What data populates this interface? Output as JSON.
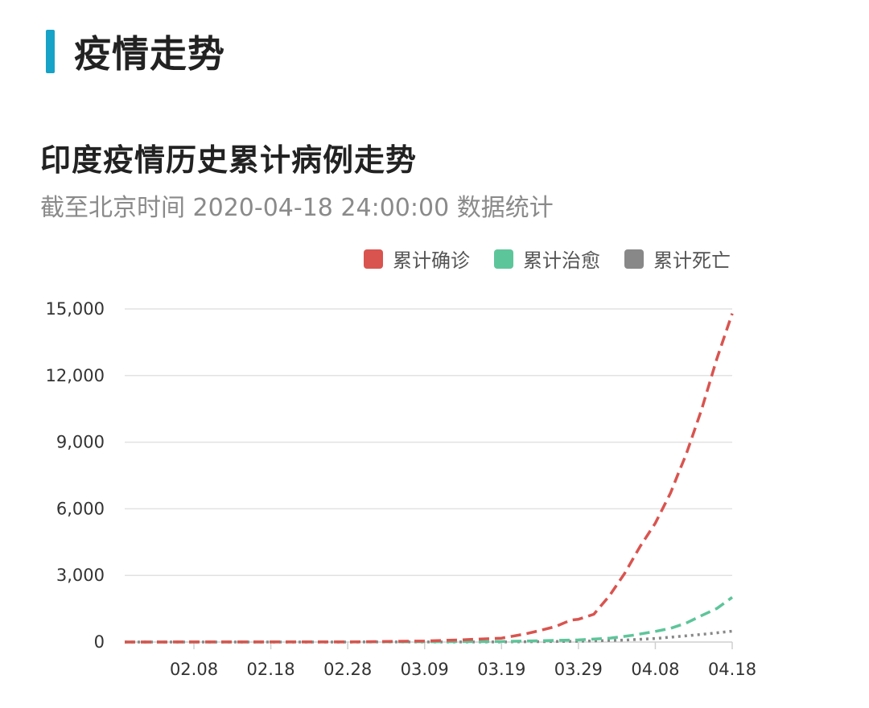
{
  "section": {
    "title": "疫情走势"
  },
  "chart_data": {
    "type": "line",
    "title": "印度疫情历史累计病例走势",
    "subtitle": "截至北京时间 2020-04-18 24:00:00 数据统计",
    "xlabel": "",
    "ylabel": "",
    "ylim": [
      0,
      15000
    ],
    "yticks": [
      0,
      3000,
      6000,
      9000,
      12000,
      15000
    ],
    "ytick_labels": [
      "0",
      "3,000",
      "6,000",
      "9,000",
      "12,000",
      "15,000"
    ],
    "xlim": [
      "2020-01-30",
      "2020-04-18"
    ],
    "xtick_labels": [
      "02.08",
      "02.18",
      "02.28",
      "03.09",
      "03.19",
      "03.29",
      "04.08",
      "04.18"
    ],
    "xtick_dates": [
      "2020-02-08",
      "2020-02-18",
      "2020-02-28",
      "2020-03-09",
      "2020-03-19",
      "2020-03-29",
      "2020-04-08",
      "2020-04-18"
    ],
    "grid": true,
    "legend_position": "top-right",
    "series": [
      {
        "name": "累计确诊",
        "color": "#d9544f",
        "dash": "dashed",
        "points": [
          [
            "2020-01-30",
            1
          ],
          [
            "2020-02-08",
            3
          ],
          [
            "2020-02-18",
            3
          ],
          [
            "2020-02-28",
            3
          ],
          [
            "2020-03-05",
            30
          ],
          [
            "2020-03-09",
            43
          ],
          [
            "2020-03-14",
            100
          ],
          [
            "2020-03-19",
            173
          ],
          [
            "2020-03-22",
            360
          ],
          [
            "2020-03-24",
            519
          ],
          [
            "2020-03-26",
            694
          ],
          [
            "2020-03-28",
            987
          ],
          [
            "2020-03-29",
            1024
          ],
          [
            "2020-03-31",
            1251
          ],
          [
            "2020-04-02",
            2069
          ],
          [
            "2020-04-04",
            3082
          ],
          [
            "2020-04-06",
            4289
          ],
          [
            "2020-04-08",
            5351
          ],
          [
            "2020-04-10",
            6725
          ],
          [
            "2020-04-11",
            7600
          ],
          [
            "2020-04-12",
            8446
          ],
          [
            "2020-04-14",
            10453
          ],
          [
            "2020-04-16",
            12759
          ],
          [
            "2020-04-18",
            14792
          ]
        ]
      },
      {
        "name": "累计治愈",
        "color": "#5dc59a",
        "dash": "dashed",
        "points": [
          [
            "2020-01-30",
            0
          ],
          [
            "2020-02-28",
            3
          ],
          [
            "2020-03-19",
            20
          ],
          [
            "2020-03-29",
            95
          ],
          [
            "2020-04-02",
            170
          ],
          [
            "2020-04-05",
            300
          ],
          [
            "2020-04-08",
            480
          ],
          [
            "2020-04-10",
            620
          ],
          [
            "2020-04-12",
            850
          ],
          [
            "2020-04-14",
            1190
          ],
          [
            "2020-04-16",
            1510
          ],
          [
            "2020-04-18",
            2015
          ]
        ]
      },
      {
        "name": "累计死亡",
        "color": "#888888",
        "dash": "dotted",
        "points": [
          [
            "2020-01-30",
            0
          ],
          [
            "2020-03-19",
            4
          ],
          [
            "2020-03-29",
            32
          ],
          [
            "2020-04-04",
            86
          ],
          [
            "2020-04-08",
            160
          ],
          [
            "2020-04-12",
            280
          ],
          [
            "2020-04-15",
            377
          ],
          [
            "2020-04-18",
            488
          ]
        ]
      }
    ]
  }
}
